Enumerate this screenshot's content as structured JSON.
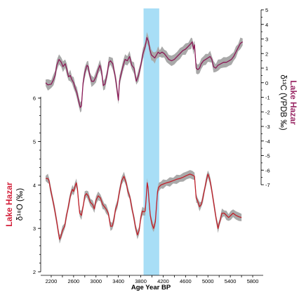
{
  "chart_data": {
    "type": "line",
    "xlabel": "Age Year BP",
    "x_ticks": [
      2200,
      2400,
      2600,
      2800,
      3000,
      3200,
      3400,
      3600,
      3800,
      4000,
      4200,
      4400,
      4600,
      4800,
      5000,
      5200,
      5400,
      5600,
      5800
    ],
    "x_tick_labels": [
      "2200",
      "2600",
      "3000",
      "3400",
      "3800",
      "4200",
      "4600",
      "5000",
      "5400",
      "5800"
    ],
    "xlim": [
      2050,
      5950
    ],
    "highlight": {
      "x_start": 3850,
      "x_end": 4130,
      "color": "#a8def6"
    },
    "left_axis": {
      "label_name": "Lake Hazar",
      "label_unit": "δ¹⁸O (‰)",
      "ylim": [
        2,
        6.4
      ],
      "ticks": [
        2,
        3,
        4,
        5,
        6
      ]
    },
    "right_axis": {
      "label_name": "Lake Hazar",
      "label_unit": "δ¹³C (VPDB ‰)",
      "ylim": [
        -7,
        5
      ],
      "ticks": [
        -7,
        -6,
        -5,
        -4,
        -3,
        -2,
        -1,
        0,
        1,
        2,
        3,
        4,
        5
      ]
    },
    "series": [
      {
        "axis": "right",
        "color": "#8b1a57",
        "band_color": "#a9a9a9",
        "points": [
          [
            2100,
            0
          ],
          [
            2140,
            -0.15
          ],
          [
            2200,
            -0.1
          ],
          [
            2240,
            0.2
          ],
          [
            2270,
            0.5
          ],
          [
            2300,
            1.2
          ],
          [
            2340,
            1.6
          ],
          [
            2380,
            1.4
          ],
          [
            2410,
            1.1
          ],
          [
            2450,
            1.3
          ],
          [
            2480,
            0.9
          ],
          [
            2510,
            0.4
          ],
          [
            2540,
            0.5
          ],
          [
            2570,
            0.2
          ],
          [
            2600,
            0.0
          ],
          [
            2630,
            -0.4
          ],
          [
            2660,
            -0.7
          ],
          [
            2700,
            -1.4
          ],
          [
            2720,
            -1.7
          ],
          [
            2740,
            -1.6
          ],
          [
            2770,
            0.0
          ],
          [
            2800,
            0.7
          ],
          [
            2840,
            1.2
          ],
          [
            2860,
            1.1
          ],
          [
            2890,
            0.5
          ],
          [
            2920,
            0.1
          ],
          [
            2960,
            0.1
          ],
          [
            3000,
            0.4
          ],
          [
            3040,
            0.9
          ],
          [
            3070,
            1.2
          ],
          [
            3100,
            0.8
          ],
          [
            3130,
            -0.2
          ],
          [
            3160,
            -0.1
          ],
          [
            3200,
            0.6
          ],
          [
            3230,
            1.4
          ],
          [
            3260,
            1.5
          ],
          [
            3300,
            1.3
          ],
          [
            3330,
            0.7
          ],
          [
            3360,
            0.0
          ],
          [
            3400,
            -1.2
          ],
          [
            3420,
            0.1
          ],
          [
            3450,
            0.6
          ],
          [
            3480,
            1.1
          ],
          [
            3520,
            1.6
          ],
          [
            3560,
            1.5
          ],
          [
            3600,
            1.8
          ],
          [
            3640,
            1.2
          ],
          [
            3680,
            1.0
          ],
          [
            3720,
            0.1
          ],
          [
            3760,
            0.5
          ],
          [
            3800,
            1.2
          ],
          [
            3840,
            2.0
          ],
          [
            3880,
            2.5
          ],
          [
            3910,
            3.1
          ],
          [
            3940,
            2.8
          ],
          [
            3960,
            2.3
          ],
          [
            3990,
            1.9
          ],
          [
            4020,
            1.8
          ],
          [
            4050,
            1.7
          ],
          [
            4080,
            1.9
          ],
          [
            4110,
            2.1
          ],
          [
            4140,
            2.0
          ],
          [
            4180,
            2.1
          ],
          [
            4220,
            2.0
          ],
          [
            4260,
            1.8
          ],
          [
            4300,
            1.6
          ],
          [
            4350,
            1.5
          ],
          [
            4400,
            1.6
          ],
          [
            4450,
            1.8
          ],
          [
            4500,
            2.0
          ],
          [
            4550,
            2.2
          ],
          [
            4600,
            2.3
          ],
          [
            4650,
            2.5
          ],
          [
            4700,
            2.7
          ],
          [
            4720,
            2.8
          ],
          [
            4740,
            2.3
          ],
          [
            4760,
            2.6
          ],
          [
            4790,
            1.0
          ],
          [
            4820,
            0.9
          ],
          [
            4850,
            1.0
          ],
          [
            4880,
            1.3
          ],
          [
            4920,
            1.5
          ],
          [
            4960,
            1.6
          ],
          [
            5000,
            1.7
          ],
          [
            5040,
            1.8
          ],
          [
            5070,
            1.6
          ],
          [
            5100,
            1.1
          ],
          [
            5140,
            1.0
          ],
          [
            5180,
            1.2
          ],
          [
            5230,
            1.3
          ],
          [
            5280,
            1.4
          ],
          [
            5330,
            1.4
          ],
          [
            5380,
            1.5
          ],
          [
            5420,
            1.6
          ],
          [
            5460,
            1.8
          ],
          [
            5500,
            2.1
          ],
          [
            5540,
            2.4
          ],
          [
            5580,
            2.7
          ],
          [
            5620,
            2.8
          ]
        ]
      },
      {
        "axis": "left",
        "color": "#c0202a",
        "band_color": "#a9a9a9",
        "points": [
          [
            2100,
            4.15
          ],
          [
            2140,
            4.15
          ],
          [
            2160,
            4.1
          ],
          [
            2180,
            3.95
          ],
          [
            2220,
            3.7
          ],
          [
            2260,
            3.45
          ],
          [
            2300,
            3.15
          ],
          [
            2330,
            2.9
          ],
          [
            2350,
            2.75
          ],
          [
            2370,
            2.8
          ],
          [
            2400,
            2.95
          ],
          [
            2440,
            3.05
          ],
          [
            2460,
            3.2
          ],
          [
            2490,
            3.4
          ],
          [
            2520,
            3.6
          ],
          [
            2550,
            3.8
          ],
          [
            2580,
            3.9
          ],
          [
            2600,
            3.85
          ],
          [
            2620,
            3.95
          ],
          [
            2650,
            4.05
          ],
          [
            2670,
            3.9
          ],
          [
            2690,
            3.6
          ],
          [
            2710,
            3.35
          ],
          [
            2740,
            3.3
          ],
          [
            2770,
            3.5
          ],
          [
            2800,
            3.75
          ],
          [
            2830,
            3.8
          ],
          [
            2860,
            3.75
          ],
          [
            2900,
            3.6
          ],
          [
            2940,
            3.55
          ],
          [
            2970,
            3.45
          ],
          [
            3000,
            3.65
          ],
          [
            3040,
            3.75
          ],
          [
            3080,
            3.7
          ],
          [
            3120,
            3.55
          ],
          [
            3150,
            3.5
          ],
          [
            3180,
            3.45
          ],
          [
            3220,
            3.35
          ],
          [
            3260,
            3.05
          ],
          [
            3290,
            3.05
          ],
          [
            3320,
            3.2
          ],
          [
            3350,
            3.45
          ],
          [
            3380,
            3.55
          ],
          [
            3420,
            3.85
          ],
          [
            3460,
            4.1
          ],
          [
            3500,
            4.2
          ],
          [
            3540,
            4.05
          ],
          [
            3570,
            3.85
          ],
          [
            3600,
            3.75
          ],
          [
            3630,
            3.55
          ],
          [
            3660,
            3.35
          ],
          [
            3690,
            3.15
          ],
          [
            3710,
            3.0
          ],
          [
            3740,
            2.85
          ],
          [
            3770,
            2.95
          ],
          [
            3800,
            3.25
          ],
          [
            3830,
            3.4
          ],
          [
            3860,
            3.38
          ],
          [
            3880,
            3.4
          ],
          [
            3900,
            3.75
          ],
          [
            3915,
            4.05
          ],
          [
            3930,
            3.95
          ],
          [
            3950,
            3.6
          ],
          [
            3970,
            3.3
          ],
          [
            4000,
            3.1
          ],
          [
            4030,
            3.0
          ],
          [
            4060,
            3.15
          ],
          [
            4080,
            3.5
          ],
          [
            4100,
            3.85
          ],
          [
            4120,
            3.95
          ],
          [
            4160,
            4.0
          ],
          [
            4200,
            4.02
          ],
          [
            4260,
            4.05
          ],
          [
            4320,
            4.07
          ],
          [
            4380,
            4.1
          ],
          [
            4440,
            4.13
          ],
          [
            4500,
            4.15
          ],
          [
            4560,
            4.18
          ],
          [
            4620,
            4.22
          ],
          [
            4680,
            4.25
          ],
          [
            4720,
            4.23
          ],
          [
            4760,
            4.2
          ],
          [
            4790,
            3.7
          ],
          [
            4810,
            3.65
          ],
          [
            4850,
            3.5
          ],
          [
            4880,
            3.55
          ],
          [
            4910,
            3.7
          ],
          [
            4940,
            3.9
          ],
          [
            4970,
            4.1
          ],
          [
            5000,
            4.25
          ],
          [
            5030,
            4.15
          ],
          [
            5060,
            3.95
          ],
          [
            5090,
            3.7
          ],
          [
            5120,
            3.45
          ],
          [
            5150,
            3.2
          ],
          [
            5180,
            3.0
          ],
          [
            5210,
            3.15
          ],
          [
            5250,
            3.35
          ],
          [
            5290,
            3.35
          ],
          [
            5330,
            3.3
          ],
          [
            5370,
            3.25
          ],
          [
            5410,
            3.3
          ],
          [
            5450,
            3.35
          ],
          [
            5500,
            3.3
          ],
          [
            5550,
            3.27
          ],
          [
            5600,
            3.25
          ]
        ]
      }
    ]
  }
}
